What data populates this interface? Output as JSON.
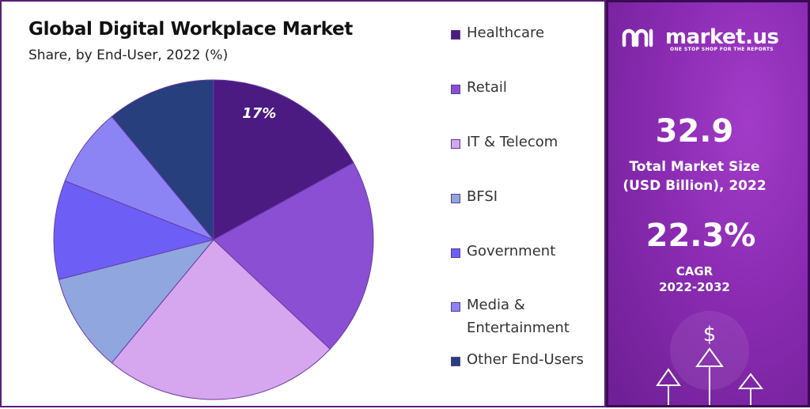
{
  "chart_data": {
    "type": "pie",
    "title": "Global Digital Workplace Market",
    "subtitle": "Share, by End-User, 2022 (%)",
    "categories": [
      "Healthcare",
      "Retail",
      "IT & Telecom",
      "BFSI",
      "Government",
      "Media & Entertainment",
      "Other End-Users"
    ],
    "values": [
      17,
      20,
      24,
      10,
      10,
      8,
      11
    ],
    "data_labels": [
      "17%",
      "",
      "",
      "",
      "",
      "",
      ""
    ],
    "colors": [
      "#4b1b82",
      "#8b4fd3",
      "#d6a6ef",
      "#8fa6de",
      "#6d5ff6",
      "#8c84f5",
      "#273f7c"
    ],
    "legend_position": "right",
    "start_angle": "12 o'clock, clockwise"
  },
  "legend": {
    "items": [
      {
        "label": "Healthcare",
        "color": "#4b1b82"
      },
      {
        "label": "Retail",
        "color": "#8b4fd3"
      },
      {
        "label": "IT & Telecom",
        "color": "#d6a6ef"
      },
      {
        "label": "BFSI",
        "color": "#8fa6de"
      },
      {
        "label": "Government",
        "color": "#6d5ff6"
      },
      {
        "label": "Media & Entertainment",
        "color": "#8c84f5"
      },
      {
        "label": "Other End-Users",
        "color": "#273f7c"
      }
    ]
  },
  "brand": {
    "name": "market.us",
    "tagline": "ONE STOP SHOP FOR THE REPORTS",
    "logo_icon": "market-us-logo-icon"
  },
  "stats": {
    "market_size_value": "32.9",
    "market_size_label_1": "Total Market Size",
    "market_size_label_2": "(USD Billion), 2022",
    "cagr_value": "22.3%",
    "cagr_label": "CAGR",
    "cagr_period": "2022-2032"
  },
  "decor": {
    "currency_symbol": "$",
    "arrow_icon": "up-arrow-icon"
  },
  "colors": {
    "frame": "#5a1e78",
    "panel_dark": "#6d1f93",
    "panel_light": "#a23cc8"
  }
}
